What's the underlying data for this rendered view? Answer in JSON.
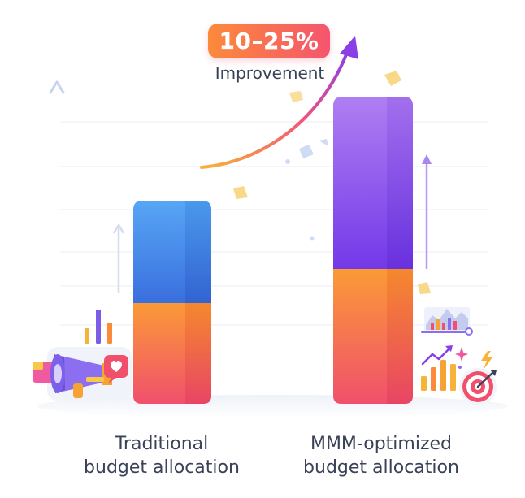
{
  "improvement": {
    "value": "10–25%",
    "label": "Improvement"
  },
  "bars": [
    {
      "label_lines": [
        "Traditional",
        "budget allocation"
      ],
      "segments": [
        {
          "part": "lower",
          "colors": [
            "#f0506c",
            "#fb9a37"
          ]
        },
        {
          "part": "upper",
          "colors": [
            "#3a6fde",
            "#57a6f5"
          ]
        }
      ]
    },
    {
      "label_lines": [
        "MMM-optimized",
        "budget allocation"
      ],
      "segments": [
        {
          "part": "lower",
          "colors": [
            "#f0506c",
            "#fb9a37"
          ]
        },
        {
          "part": "upper",
          "colors": [
            "#7339e8",
            "#b07ef2"
          ]
        }
      ]
    }
  ],
  "colors": {
    "arrow_start": "#f7b23a",
    "arrow_mid": "#f2547a",
    "arrow_end": "#8a3fe6",
    "grid": "#eceef5",
    "caption": "#3a4258"
  },
  "icons": [
    "megaphone-icon",
    "heart-icon",
    "mini-bar-chart-icon",
    "trend-chart-icon",
    "target-icon",
    "lightning-icon",
    "sparkle-icon"
  ]
}
